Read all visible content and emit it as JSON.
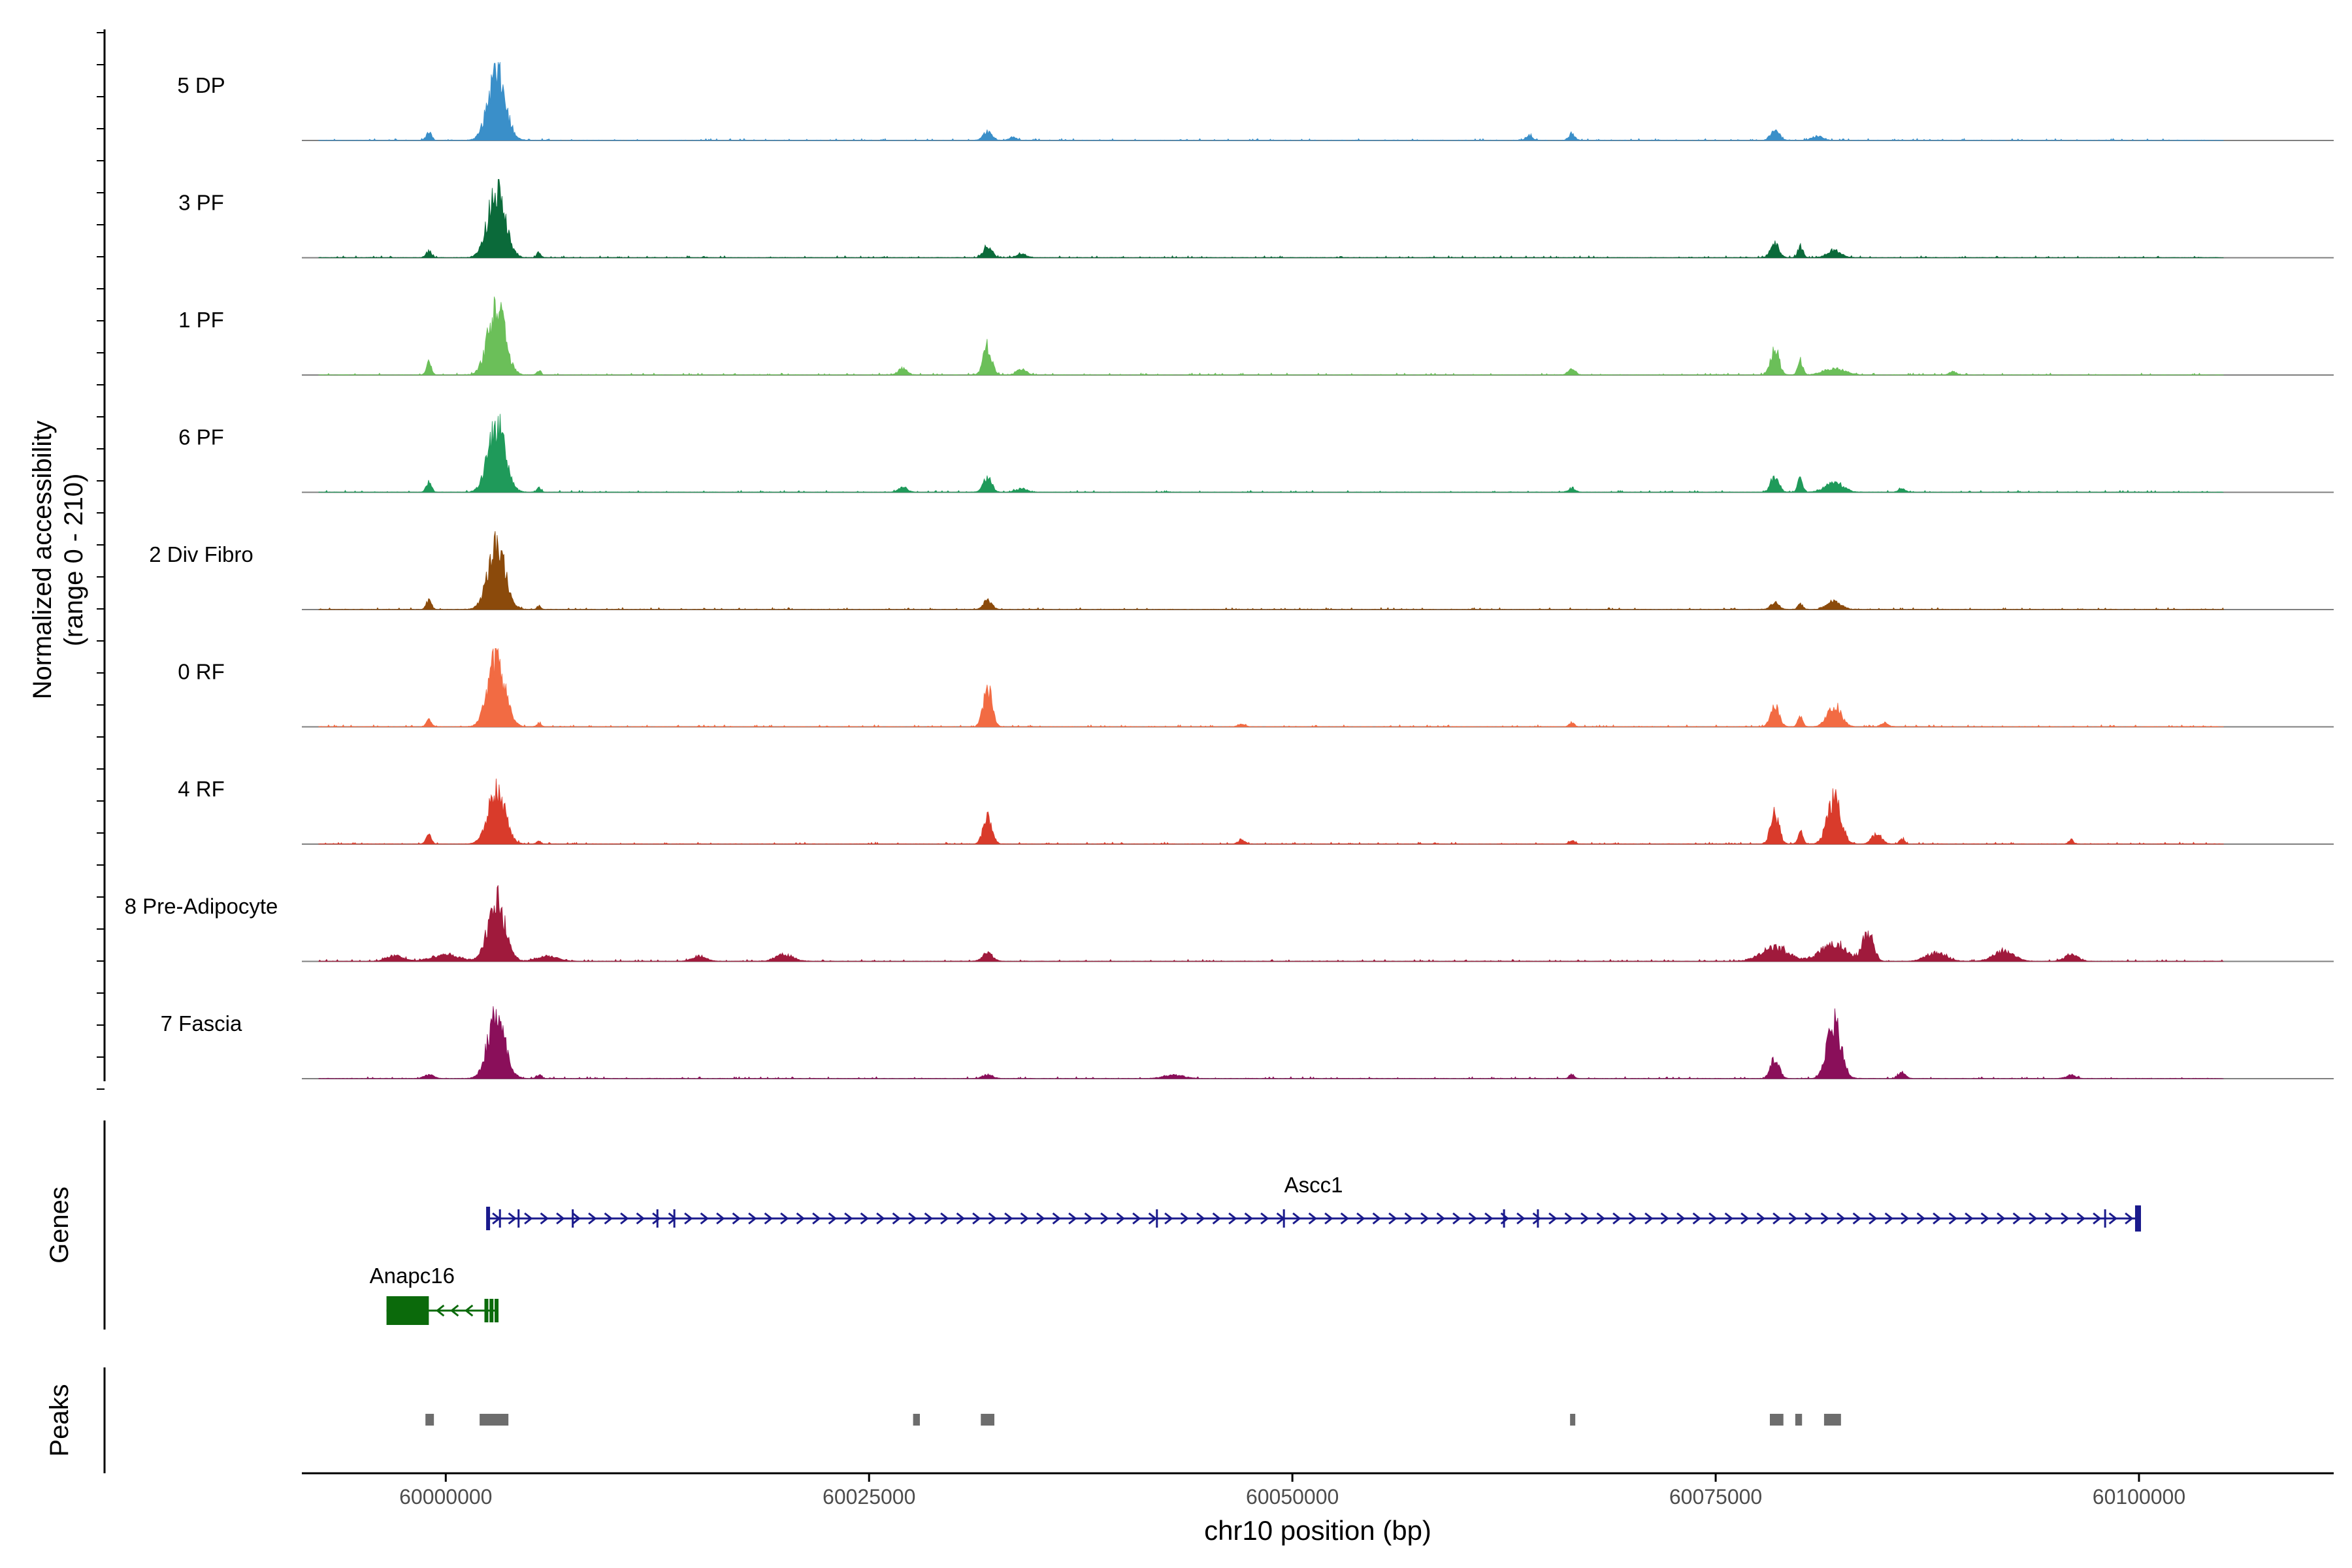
{
  "chart_data": {
    "type": "coverage-track",
    "ylabel_line1": "Normalized accessibility",
    "ylabel_line2": "(range 0 - 210)",
    "y_range": [
      0,
      210
    ],
    "xlabel": "chr10 position (bp)",
    "x_range": [
      59991500,
      60111500
    ],
    "x_ticks": [
      60000000,
      60025000,
      60050000,
      60075000,
      60100000
    ],
    "x_tick_labels": [
      "60000000",
      "60025000",
      "60050000",
      "60075000",
      "60100000"
    ],
    "data_extent": [
      59992500,
      60105000
    ],
    "baseline_color": "#7f7f7f",
    "tracks": [
      {
        "name": "5 DP",
        "color": "#3a8fc9",
        "peaks": [
          [
            59999000,
            0.12,
            150
          ],
          [
            60003000,
            1.0,
            500
          ],
          [
            60032000,
            0.13,
            250
          ],
          [
            60033500,
            0.05,
            200
          ],
          [
            60064000,
            0.07,
            180
          ],
          [
            60066500,
            0.1,
            180
          ],
          [
            60078500,
            0.16,
            250
          ],
          [
            60081000,
            0.06,
            300
          ]
        ]
      },
      {
        "name": "3 PF",
        "color": "#0b6a3a",
        "peaks": [
          [
            59999000,
            0.1,
            150
          ],
          [
            60003000,
            1.0,
            500
          ],
          [
            60005500,
            0.08,
            120
          ],
          [
            60032000,
            0.17,
            250
          ],
          [
            60034000,
            0.05,
            300
          ],
          [
            60078500,
            0.2,
            250
          ],
          [
            60080000,
            0.17,
            150
          ],
          [
            60082000,
            0.1,
            400
          ]
        ]
      },
      {
        "name": "1 PF",
        "color": "#6bbf59",
        "peaks": [
          [
            59999000,
            0.18,
            150
          ],
          [
            60003000,
            1.0,
            500
          ],
          [
            60005500,
            0.06,
            120
          ],
          [
            60027000,
            0.1,
            250
          ],
          [
            60032000,
            0.42,
            250
          ],
          [
            60034000,
            0.08,
            300
          ],
          [
            60066500,
            0.09,
            200
          ],
          [
            60078500,
            0.36,
            250
          ],
          [
            60080000,
            0.22,
            150
          ],
          [
            60082000,
            0.1,
            600
          ],
          [
            60089000,
            0.05,
            200
          ]
        ]
      },
      {
        "name": "6 PF",
        "color": "#1f9a5a",
        "peaks": [
          [
            59999000,
            0.15,
            150
          ],
          [
            60003000,
            1.0,
            500
          ],
          [
            60005500,
            0.06,
            120
          ],
          [
            60027000,
            0.08,
            250
          ],
          [
            60032000,
            0.22,
            250
          ],
          [
            60034000,
            0.06,
            300
          ],
          [
            60066500,
            0.06,
            200
          ],
          [
            60078500,
            0.22,
            250
          ],
          [
            60080000,
            0.2,
            150
          ],
          [
            60082000,
            0.15,
            500
          ],
          [
            60086000,
            0.05,
            200
          ]
        ]
      },
      {
        "name": "2 Div Fibro",
        "color": "#8b4a0b",
        "peaks": [
          [
            59999000,
            0.14,
            150
          ],
          [
            60003000,
            1.0,
            500
          ],
          [
            60005500,
            0.05,
            120
          ],
          [
            60032000,
            0.13,
            250
          ],
          [
            60078500,
            0.1,
            250
          ],
          [
            60080000,
            0.08,
            150
          ],
          [
            60082000,
            0.12,
            400
          ]
        ]
      },
      {
        "name": "0 RF",
        "color": "#f26b43",
        "peaks": [
          [
            59999000,
            0.1,
            150
          ],
          [
            60003000,
            1.0,
            500
          ],
          [
            60005500,
            0.05,
            120
          ],
          [
            60032000,
            0.6,
            250
          ],
          [
            60047000,
            0.04,
            200
          ],
          [
            60066500,
            0.06,
            150
          ],
          [
            60078500,
            0.3,
            250
          ],
          [
            60080000,
            0.14,
            150
          ],
          [
            60082000,
            0.3,
            400
          ],
          [
            60085000,
            0.06,
            200
          ]
        ]
      },
      {
        "name": "4 RF",
        "color": "#d93b2b",
        "peaks": [
          [
            59999000,
            0.14,
            150
          ],
          [
            60003000,
            0.78,
            500
          ],
          [
            60005500,
            0.05,
            120
          ],
          [
            60032000,
            0.43,
            250
          ],
          [
            60047000,
            0.06,
            200
          ],
          [
            60066500,
            0.05,
            150
          ],
          [
            60078500,
            0.45,
            250
          ],
          [
            60080000,
            0.18,
            150
          ],
          [
            60082000,
            0.66,
            400
          ],
          [
            60084500,
            0.14,
            300
          ],
          [
            60086000,
            0.08,
            150
          ],
          [
            60096000,
            0.05,
            150
          ]
        ]
      },
      {
        "name": "8 Pre-Adipocyte",
        "color": "#a01a3c",
        "peaks": [
          [
            59997000,
            0.08,
            500
          ],
          [
            60000000,
            0.1,
            800
          ],
          [
            60003000,
            0.9,
            500
          ],
          [
            60006000,
            0.08,
            600
          ],
          [
            60015000,
            0.08,
            400
          ],
          [
            60020000,
            0.1,
            500
          ],
          [
            60032000,
            0.12,
            300
          ],
          [
            60078500,
            0.2,
            800
          ],
          [
            60082000,
            0.25,
            800
          ],
          [
            60084000,
            0.45,
            300
          ],
          [
            60088000,
            0.12,
            600
          ],
          [
            60092000,
            0.15,
            600
          ],
          [
            60096000,
            0.1,
            400
          ]
        ]
      },
      {
        "name": "7 Fascia",
        "color": "#8a0f5a",
        "peaks": [
          [
            59999000,
            0.05,
            300
          ],
          [
            60003000,
            0.95,
            500
          ],
          [
            60005500,
            0.05,
            150
          ],
          [
            60032000,
            0.06,
            300
          ],
          [
            60043000,
            0.05,
            600
          ],
          [
            60066500,
            0.06,
            150
          ],
          [
            60078500,
            0.3,
            250
          ],
          [
            60082000,
            0.85,
            400
          ],
          [
            60086000,
            0.1,
            200
          ],
          [
            60096000,
            0.05,
            300
          ]
        ]
      }
    ],
    "genes": {
      "label": "Genes",
      "ascc1": {
        "name": "Ascc1",
        "strand": "+",
        "start": 60002500,
        "end": 60100000,
        "color": "#1a1a8c",
        "exons": [
          60002500,
          60003200,
          60004300,
          60007500,
          60012500,
          60013500,
          60042000,
          60049500,
          60062500,
          60064500,
          60098000,
          60100000
        ]
      },
      "anapc16": {
        "name": "Anapc16",
        "strand": "-",
        "start": 59996500,
        "end": 60003000,
        "color": "#0b6a0b",
        "exons": [
          60002400,
          60002700,
          60003000
        ],
        "utr_block": [
          59996500,
          59999000
        ]
      }
    },
    "peaks": {
      "label": "Peaks",
      "color": "#6d6d6d",
      "regions": [
        [
          59998800,
          59999300
        ],
        [
          60002000,
          60003700
        ],
        [
          60027600,
          60028000
        ],
        [
          60031600,
          60032400
        ],
        [
          60066400,
          60066700
        ],
        [
          60078200,
          60079000
        ],
        [
          60079700,
          60080100
        ],
        [
          60081400,
          60082400
        ]
      ]
    }
  }
}
